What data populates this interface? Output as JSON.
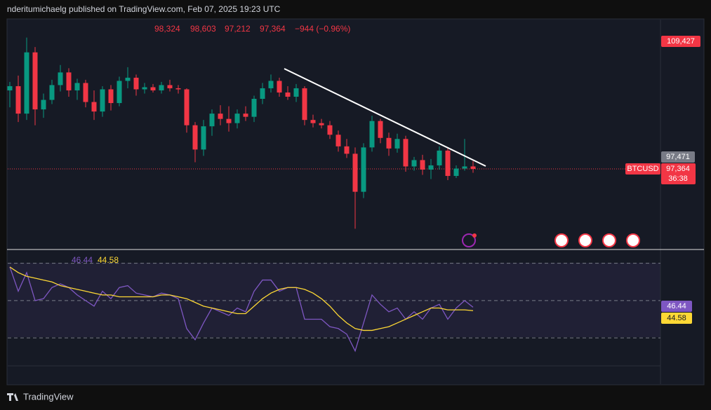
{
  "header": {
    "publisher": "nderitumichaelg published on TradingView.com, Feb 07, 2025 19:23 UTC",
    "ohlc": [
      "98,324",
      "98,603",
      "97,212",
      "97,364",
      "−944 (−0.96%)"
    ]
  },
  "chart_data": {
    "type": "candlestick",
    "ylim": [
      90000,
      111500
    ],
    "candles": {
      "open": [
        104800,
        105200,
        102600,
        108400,
        103000,
        103900,
        105300,
        106500,
        104800,
        105500,
        103700,
        102800,
        104900,
        103600,
        105700,
        106000,
        104900,
        105100,
        104800,
        105300,
        105000,
        104900,
        101500,
        99200,
        101400,
        102600,
        102100,
        101700,
        102600,
        102300,
        104000,
        105000,
        105700,
        104600,
        104200,
        105000,
        102000,
        101700,
        101500,
        100600,
        99500,
        98800,
        95200,
        99400,
        101900,
        100300,
        99300,
        100200,
        97600,
        98200,
        97300,
        97700,
        99100,
        96700,
        97400,
        97600
      ],
      "high": [
        105600,
        106200,
        109800,
        108900,
        104500,
        105800,
        107200,
        106900,
        105900,
        105800,
        104800,
        105200,
        105300,
        106100,
        107000,
        106300,
        105500,
        105400,
        105600,
        105800,
        105300,
        105000,
        101800,
        102000,
        103000,
        103400,
        103300,
        103000,
        103300,
        104300,
        105500,
        106300,
        106000,
        105200,
        105400,
        105200,
        102500,
        102100,
        101900,
        101000,
        100200,
        99400,
        99800,
        102400,
        102100,
        100800,
        100700,
        100500,
        98500,
        98700,
        98300,
        99500,
        99300,
        97700,
        100200,
        98100
      ],
      "low": [
        103200,
        101800,
        102000,
        101500,
        102200,
        103500,
        104700,
        104200,
        103900,
        103200,
        102000,
        102300,
        102900,
        103300,
        105000,
        104300,
        104500,
        104600,
        104500,
        104700,
        104500,
        100800,
        98000,
        98600,
        100500,
        101500,
        100900,
        101200,
        101900,
        101800,
        103500,
        104600,
        104200,
        103900,
        103700,
        101500,
        101300,
        101200,
        100200,
        99000,
        98400,
        91700,
        94600,
        99000,
        99800,
        98600,
        98900,
        97100,
        97200,
        96800,
        96400,
        97300,
        96300,
        96500,
        97200,
        97000
      ],
      "close": [
        105200,
        102600,
        108400,
        103000,
        103900,
        105300,
        106500,
        104800,
        105500,
        103700,
        102800,
        104900,
        103600,
        105700,
        106000,
        104900,
        105100,
        104800,
        105300,
        105000,
        104900,
        101500,
        99200,
        101400,
        102600,
        102100,
        101700,
        102600,
        102300,
        104000,
        105000,
        105700,
        104600,
        104200,
        105000,
        102000,
        101700,
        101500,
        100600,
        99500,
        98800,
        95200,
        99400,
        101900,
        100300,
        99300,
        100200,
        97600,
        98200,
        97300,
        97700,
        99100,
        96700,
        97400,
        97600,
        97364
      ]
    },
    "up_color": "#089981",
    "down_color": "#f23645",
    "price_labels": {
      "high": "109,427",
      "prev": "97,471",
      "symbol": "BTCUSD",
      "last": "97,364",
      "countdown": "36:38"
    },
    "rsi": {
      "ylim": [
        15,
        77
      ],
      "levels": [
        30,
        50,
        70
      ],
      "series": [
        {
          "color": "#7e57c2",
          "values": [
            68,
            55,
            65,
            50,
            51,
            57,
            59,
            57,
            53,
            50,
            47,
            55,
            51,
            57,
            58,
            54,
            53,
            52,
            54,
            53,
            51,
            35,
            29,
            38,
            46,
            44,
            42,
            46,
            44,
            55,
            61,
            61,
            55,
            57,
            57,
            40,
            40,
            40,
            36,
            35,
            32,
            23,
            38,
            53,
            48,
            44,
            46,
            40,
            44,
            40,
            46,
            48,
            40,
            46,
            50,
            46.44
          ]
        },
        {
          "color": "#fdd835",
          "values": [
            68,
            65,
            63,
            62,
            61,
            60,
            58,
            57,
            56,
            55,
            54,
            53,
            53,
            52,
            52,
            52,
            52,
            52,
            53,
            53,
            52,
            51,
            49,
            47,
            46,
            45,
            44,
            43,
            43,
            47,
            51,
            54,
            56,
            57,
            57,
            56,
            54,
            51,
            47,
            42,
            38,
            35,
            34,
            34,
            35,
            36,
            38,
            40,
            42,
            44,
            46,
            46,
            45,
            45,
            45,
            44.58
          ]
        }
      ]
    }
  },
  "footer": {
    "brand": "TradingView"
  }
}
